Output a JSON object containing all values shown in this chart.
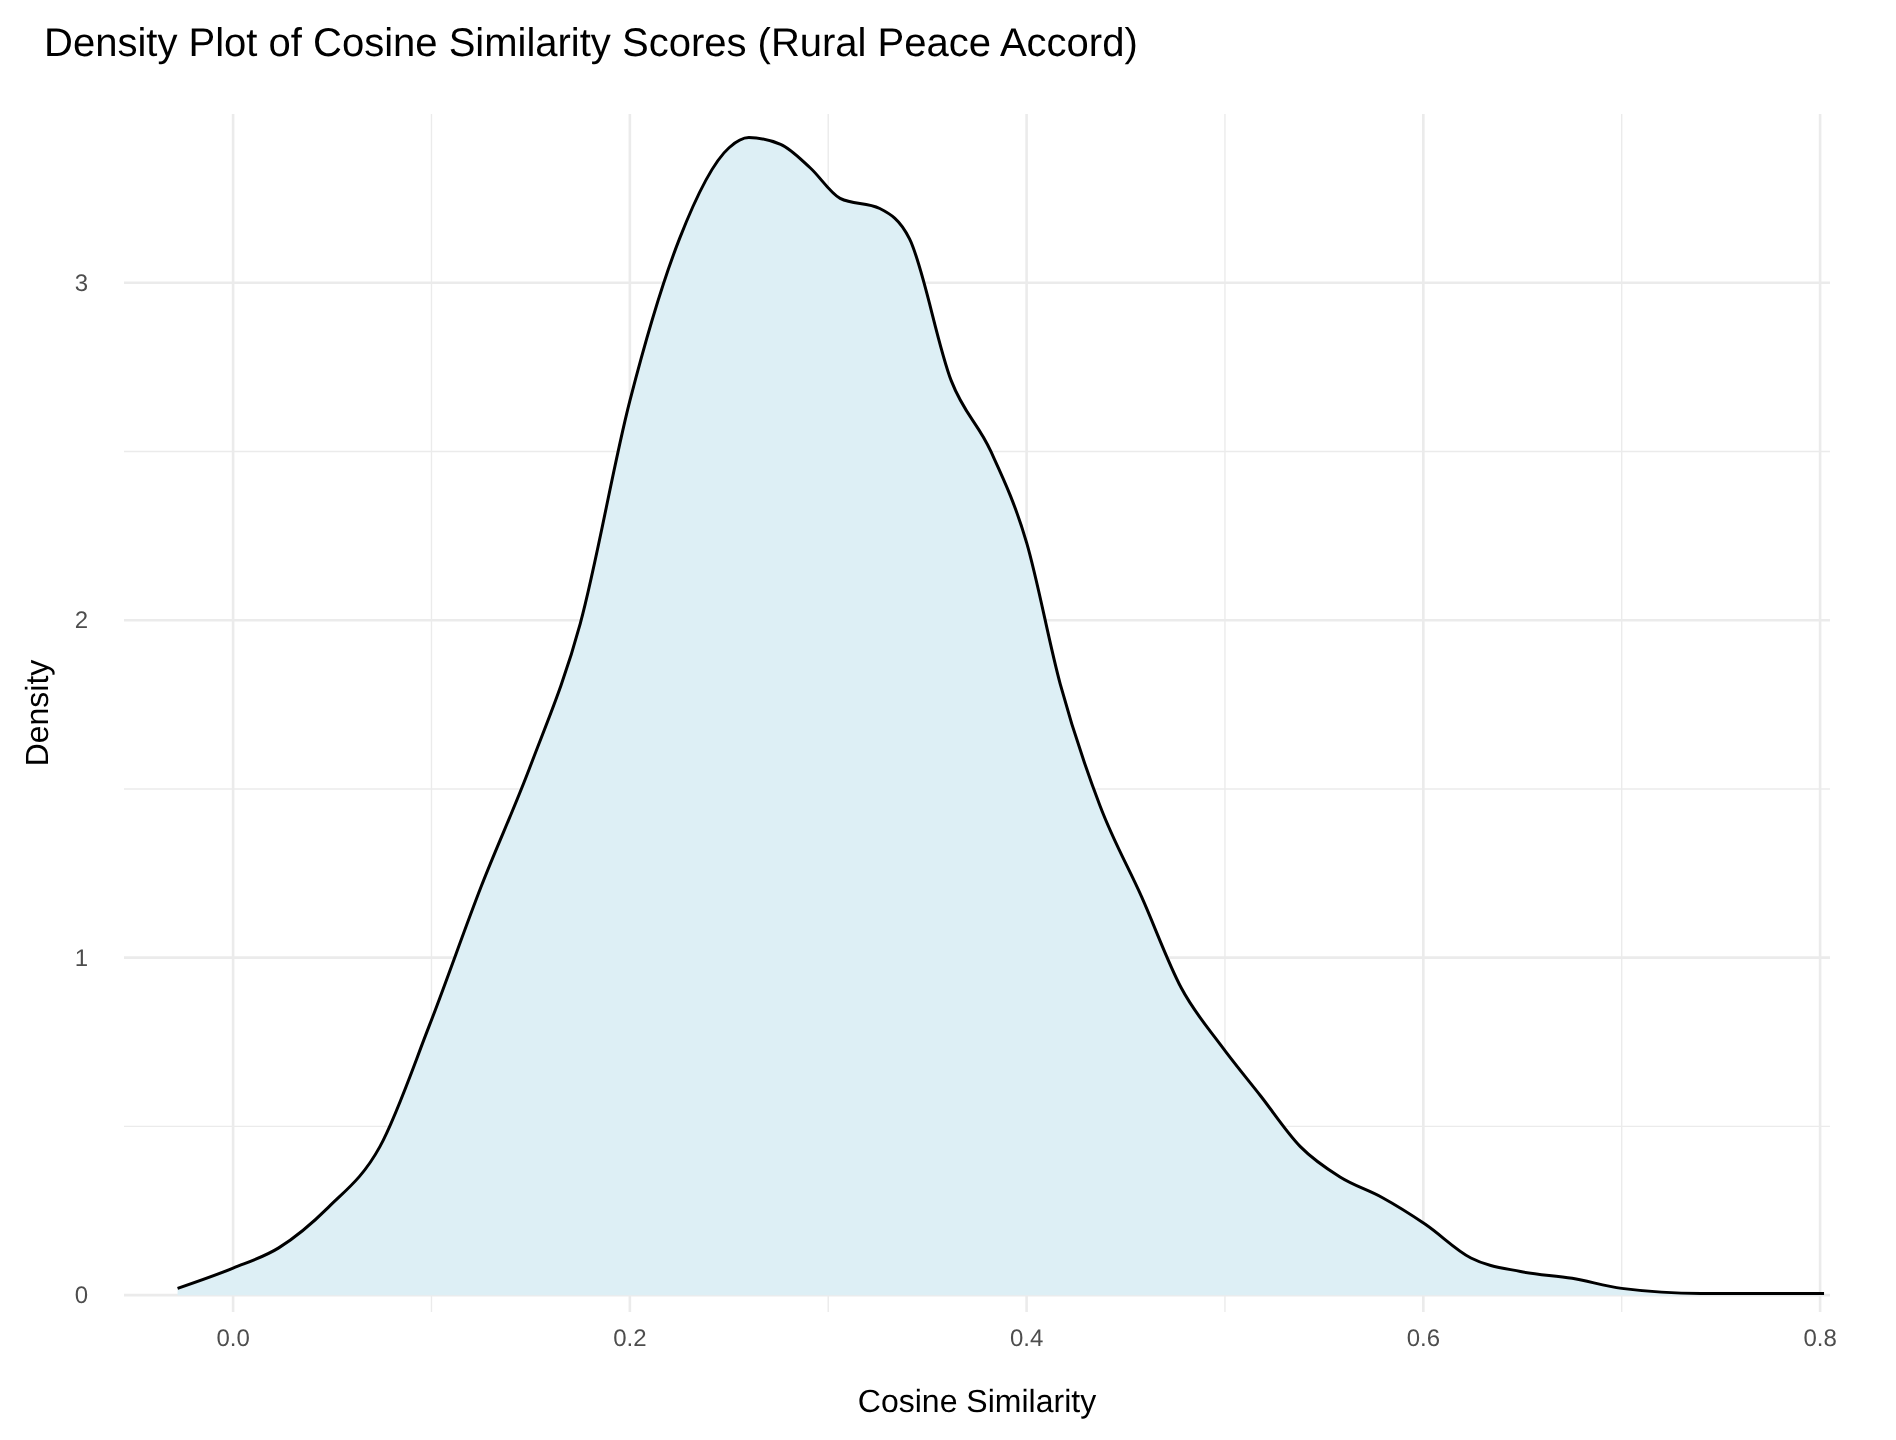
{
  "chart_data": {
    "type": "area",
    "title": "Density Plot of Cosine Similarity Scores (Rural Peace Accord)",
    "xlabel": "Cosine Similarity",
    "ylabel": "Density",
    "x": [
      -0.028,
      0,
      0.023,
      0.048,
      0.074,
      0.099,
      0.125,
      0.15,
      0.175,
      0.2,
      0.225,
      0.25,
      0.26,
      0.276,
      0.291,
      0.306,
      0.326,
      0.341,
      0.362,
      0.382,
      0.4,
      0.417,
      0.437,
      0.458,
      0.478,
      0.498,
      0.518,
      0.538,
      0.558,
      0.579,
      0.601,
      0.624,
      0.649,
      0.675,
      0.7,
      0.74,
      0.802
    ],
    "series": [
      {
        "color": "#ddeff5",
        "values": [
          0.02,
          0.08,
          0.14,
          0.26,
          0.44,
          0.8,
          1.21,
          1.57,
          1.99,
          2.65,
          3.13,
          3.4,
          3.43,
          3.41,
          3.34,
          3.25,
          3.22,
          3.13,
          2.71,
          2.5,
          2.23,
          1.81,
          1.45,
          1.18,
          0.91,
          0.74,
          0.59,
          0.44,
          0.35,
          0.29,
          0.21,
          0.11,
          0.07,
          0.05,
          0.02,
          0.005,
          0.005
        ]
      }
    ],
    "xlim": [
      -0.055,
      0.805
    ],
    "ylim": [
      -0.05,
      3.5
    ],
    "xticks": [
      {
        "value": 0,
        "label": "0.0"
      },
      {
        "value": 0.1,
        "label": null
      },
      {
        "value": 0.2,
        "label": "0.2"
      },
      {
        "value": 0.3,
        "label": null
      },
      {
        "value": 0.4,
        "label": "0.4"
      },
      {
        "value": 0.5,
        "label": null
      },
      {
        "value": 0.6,
        "label": "0.6"
      },
      {
        "value": 0.7,
        "label": null
      },
      {
        "value": 0.8,
        "label": "0.8"
      }
    ],
    "yticks": [
      0,
      {
        "value": 0.5,
        "label": null
      },
      1,
      {
        "value": 1.5,
        "label": null
      },
      2,
      {
        "value": 2.5,
        "label": null
      },
      3
    ],
    "grid": true
  }
}
